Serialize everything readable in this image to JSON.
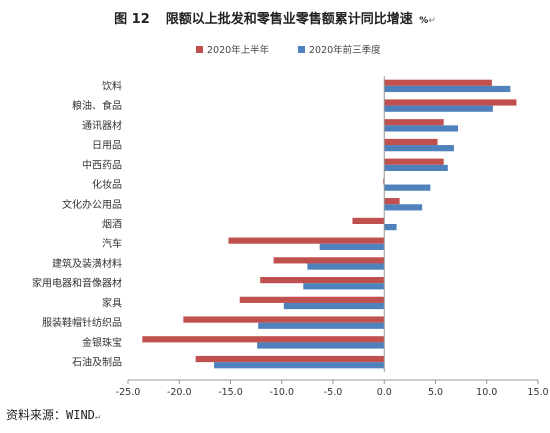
{
  "title": {
    "figure_no": "图 12",
    "text": "限额以上批发和零售业零售额累计同比增速",
    "unit_symbol": "%",
    "trailing_mark": "↵"
  },
  "source": {
    "text": "资料来源：WIND",
    "trailing_mark": "↵"
  },
  "chart_data": {
    "type": "bar",
    "orientation": "horizontal",
    "categories": [
      "饮料",
      "粮油、食品",
      "通讯器材",
      "日用品",
      "中西药品",
      "化妆品",
      "文化办公用品",
      "烟酒",
      "汽车",
      "建筑及装潢材料",
      "家用电器和音像器材",
      "家具",
      "服装鞋帽针纺织品",
      "金银珠宝",
      "石油及制品"
    ],
    "series": [
      {
        "name": "2020年上半年",
        "color": "#c0504d",
        "values": [
          10.5,
          12.9,
          5.8,
          5.2,
          5.8,
          -0.1,
          1.5,
          -3.1,
          -15.2,
          -10.8,
          -12.1,
          -14.1,
          -19.6,
          -23.6,
          -18.4
        ]
      },
      {
        "name": "2020年前三季度",
        "color": "#4f81bd",
        "values": [
          12.3,
          10.6,
          7.2,
          6.8,
          6.2,
          4.5,
          3.7,
          1.2,
          -6.3,
          -7.5,
          -7.9,
          -9.8,
          -12.3,
          -12.4,
          -16.6
        ]
      }
    ],
    "xlim": [
      -25.0,
      15.0
    ],
    "x_ticks": [
      "-25.0",
      "-20.0",
      "-15.0",
      "-10.0",
      "-5.0",
      "0.0",
      "5.0",
      "10.0",
      "15.0"
    ],
    "x_tick_values": [
      -25,
      -20,
      -15,
      -10,
      -5,
      0,
      5,
      10,
      15
    ],
    "legend_position": "top",
    "grid": false
  }
}
